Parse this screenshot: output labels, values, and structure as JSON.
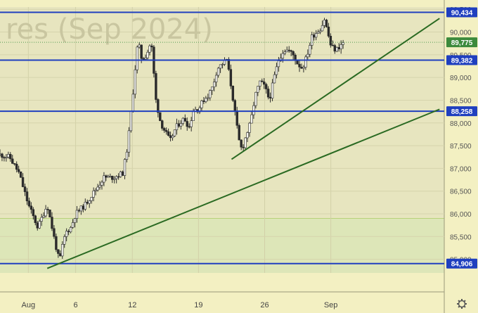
{
  "chart_data": {
    "type": "candlestick",
    "watermark": "res (Sep 2024)",
    "y_range": [
      84700,
      90550
    ],
    "x_range_days": [
      0,
      47
    ],
    "y_ticks": [
      90500,
      90000,
      89500,
      89000,
      88500,
      88000,
      87500,
      87000,
      86500,
      86000,
      85500,
      85000
    ],
    "y_tick_labels": [
      "90,500",
      "90,000",
      "89,500",
      "89,000",
      "88,500",
      "88,000",
      "87,500",
      "87,000",
      "86,500",
      "86,000",
      "85,500",
      "85,000"
    ],
    "x_ticks": [
      {
        "label": "Aug",
        "day": 3
      },
      {
        "label": "6",
        "day": 8
      },
      {
        "label": "12",
        "day": 14
      },
      {
        "label": "19",
        "day": 21
      },
      {
        "label": "26",
        "day": 28
      },
      {
        "label": "Sep",
        "day": 35
      }
    ],
    "horizontal_levels": [
      {
        "value": 90434,
        "label": "90,434",
        "color": "#1f3fbf"
      },
      {
        "value": 89382,
        "label": "89,382",
        "color": "#1f3fbf"
      },
      {
        "value": 88258,
        "label": "88,258",
        "color": "#1f3fbf"
      },
      {
        "value": 84906,
        "label": "84,906",
        "color": "#1f3fbf"
      }
    ],
    "last_price": {
      "value": 89775,
      "label": "89,775",
      "color": "#3c8a3c"
    },
    "trendlines": [
      {
        "from": {
          "day": 5.0,
          "value": 84800
        },
        "to": {
          "day": 46.5,
          "value": 88300
        },
        "color": "#2a6a22"
      },
      {
        "from": {
          "day": 24.5,
          "value": 87200
        },
        "to": {
          "day": 46.5,
          "value": 90300
        },
        "color": "#2a6a22"
      }
    ],
    "zone_upper_value": 85900,
    "price_path": [
      [
        0,
        87300
      ],
      [
        1,
        87250
      ],
      [
        2,
        86900
      ],
      [
        3,
        86200
      ],
      [
        4,
        85700
      ],
      [
        4.6,
        86000
      ],
      [
        5,
        86200
      ],
      [
        5.6,
        85600
      ],
      [
        6,
        85200
      ],
      [
        6.3,
        84950
      ],
      [
        6.7,
        85400
      ],
      [
        7,
        85600
      ],
      [
        7.5,
        85700
      ],
      [
        8,
        86000
      ],
      [
        9,
        86200
      ],
      [
        10,
        86500
      ],
      [
        11,
        86800
      ],
      [
        12,
        86800
      ],
      [
        13,
        86900
      ],
      [
        13.5,
        87500
      ],
      [
        14,
        88500
      ],
      [
        14.3,
        89200
      ],
      [
        14.6,
        89800
      ],
      [
        15,
        89400
      ],
      [
        15.5,
        89500
      ],
      [
        16,
        89800
      ],
      [
        16.5,
        88500
      ],
      [
        17,
        88000
      ],
      [
        17.5,
        87800
      ],
      [
        18,
        87600
      ],
      [
        18.6,
        87900
      ],
      [
        19,
        88000
      ],
      [
        19.5,
        88100
      ],
      [
        20,
        87900
      ],
      [
        20.5,
        88300
      ],
      [
        21,
        88300
      ],
      [
        21.5,
        88500
      ],
      [
        22,
        88600
      ],
      [
        22.5,
        88800
      ],
      [
        23,
        89200
      ],
      [
        23.5,
        89300
      ],
      [
        24,
        89400
      ],
      [
        24.3,
        89000
      ],
      [
        24.6,
        88600
      ],
      [
        25,
        88000
      ],
      [
        25.3,
        87600
      ],
      [
        25.6,
        87400
      ],
      [
        26,
        87700
      ],
      [
        26.5,
        88000
      ],
      [
        27,
        88600
      ],
      [
        27.5,
        88900
      ],
      [
        28,
        88800
      ],
      [
        28.5,
        88500
      ],
      [
        29,
        89000
      ],
      [
        29.5,
        89400
      ],
      [
        30,
        89600
      ],
      [
        30.5,
        89600
      ],
      [
        31,
        89500
      ],
      [
        31.5,
        89300
      ],
      [
        32,
        89200
      ],
      [
        32.5,
        89500
      ],
      [
        33,
        89900
      ],
      [
        33.5,
        90000
      ],
      [
        34,
        90100
      ],
      [
        34.3,
        90300
      ],
      [
        34.6,
        90050
      ],
      [
        35,
        89700
      ],
      [
        35.5,
        89600
      ],
      [
        36,
        89700
      ],
      [
        36.4,
        89775
      ]
    ]
  }
}
